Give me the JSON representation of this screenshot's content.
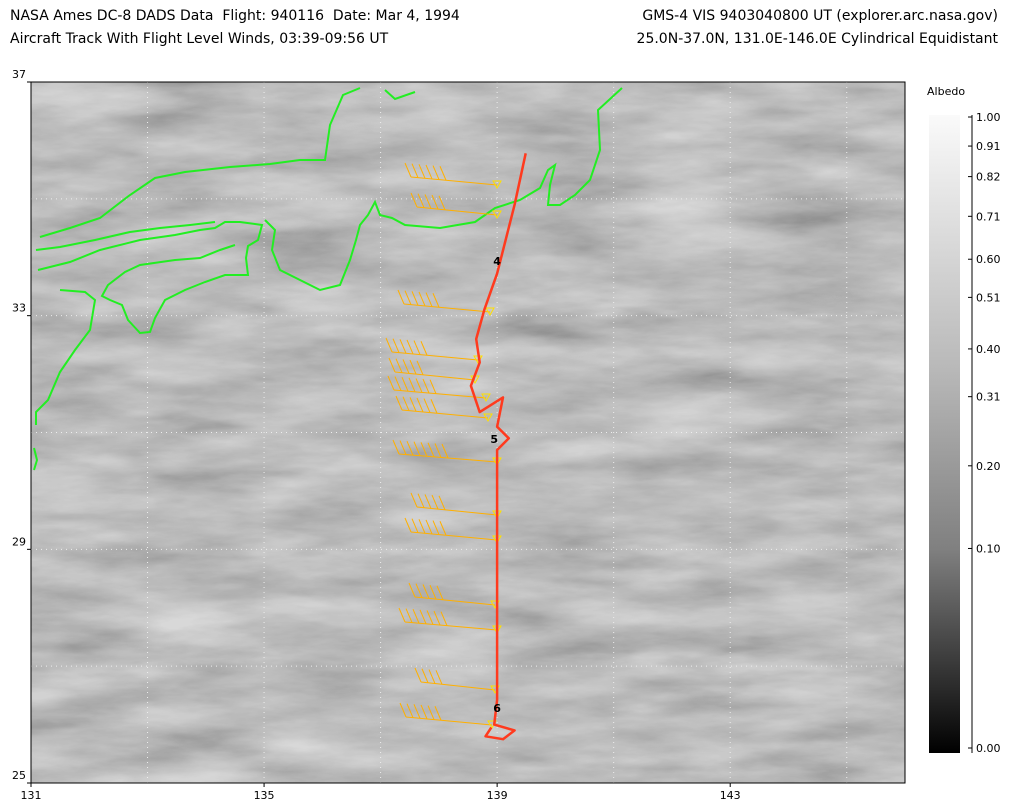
{
  "header": {
    "left_line1": "NASA Ames DC-8 DADS Data  Flight: 940116  Date: Mar 4, 1994",
    "left_line2": "Aircraft Track With Flight Level Winds, 03:39-09:56 UT",
    "right_line1": "GMS-4 VIS 9403040800 UT (explorer.arc.nasa.gov)",
    "right_line2": "25.0N-37.0N, 131.0E-146.0E Cylindrical Equidistant"
  },
  "map": {
    "lonlim": [
      131,
      146
    ],
    "latlim": [
      25,
      37
    ],
    "lon_ticks": [
      131,
      135,
      139,
      143
    ],
    "lat_ticks": [
      25,
      29,
      33,
      37
    ],
    "grid_lon": [
      133,
      135,
      137,
      139,
      141,
      143,
      145
    ],
    "grid_lat": [
      27,
      29,
      31,
      33,
      35
    ],
    "track": {
      "color": "#ff3a1e",
      "lon": [
        139.49,
        139.3,
        139.0,
        138.78,
        138.64,
        138.7,
        138.55,
        138.7,
        139.1,
        139.0,
        139.2,
        139.0,
        139.0,
        139.0,
        139.0,
        138.95,
        139.3,
        139.1,
        138.8,
        138.9
      ],
      "lat": [
        35.78,
        34.9,
        33.72,
        33.1,
        32.6,
        32.2,
        31.8,
        31.35,
        31.6,
        31.1,
        30.9,
        30.7,
        29.2,
        27.5,
        26.42,
        26.0,
        25.9,
        25.75,
        25.8,
        25.95
      ]
    },
    "track_labels": [
      {
        "label": "4",
        "lon": 139.0,
        "lat": 33.94
      },
      {
        "label": "5",
        "lon": 138.95,
        "lat": 30.89
      },
      {
        "label": "6",
        "lon": 139.0,
        "lat": 26.28
      }
    ]
  },
  "colorbar": {
    "title": "Albedo",
    "scale": "sqrt",
    "lim": [
      0,
      1
    ],
    "ticks": [
      {
        "value": 1.0,
        "label": "1.00"
      },
      {
        "value": 0.91,
        "label": "0.91"
      },
      {
        "value": 0.82,
        "label": "0.82"
      },
      {
        "value": 0.71,
        "label": "0.71"
      },
      {
        "value": 0.6,
        "label": "0.60"
      },
      {
        "value": 0.51,
        "label": "0.51"
      },
      {
        "value": 0.4,
        "label": "0.40"
      },
      {
        "value": 0.31,
        "label": "0.31"
      },
      {
        "value": 0.2,
        "label": "0.20"
      },
      {
        "value": 0.1,
        "label": "0.10"
      },
      {
        "value": 0,
        "label": "0.00"
      }
    ]
  }
}
